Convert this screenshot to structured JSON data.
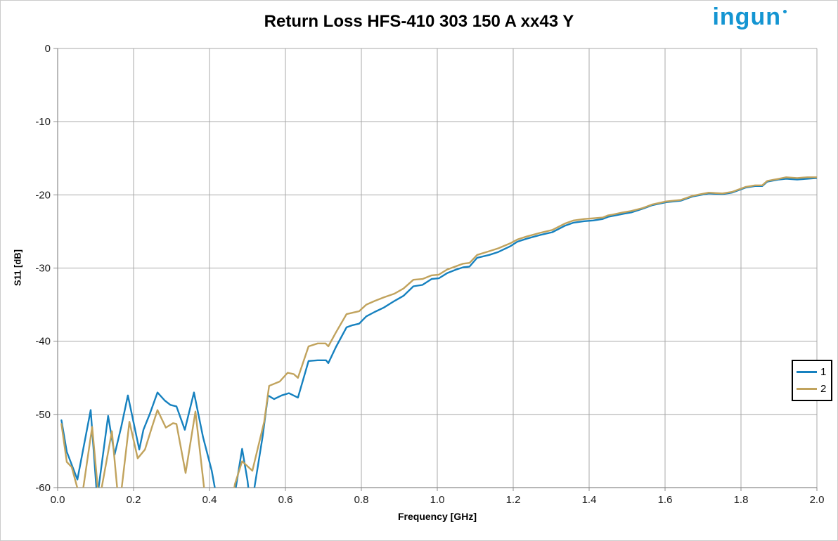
{
  "logo": {
    "text": "ingun"
  },
  "chart_data": {
    "type": "line",
    "title": "Return Loss HFS-410 303 150 A xx43 Y",
    "xlabel": "Frequency [GHz]",
    "ylabel": "S11 [dB]",
    "xlim": [
      0.0,
      2.0
    ],
    "ylim": [
      -60,
      0
    ],
    "grid": true,
    "legend_position": "inside-right",
    "x_ticks": {
      "values": [
        0.0,
        0.2,
        0.4,
        0.6,
        0.8,
        1.0,
        1.2,
        1.4,
        1.6,
        1.8,
        2.0
      ],
      "labels": [
        "0.0",
        "0.2",
        "0.4",
        "0.6",
        "0.8",
        "1.0",
        "1.2",
        "1.4",
        "1.6",
        "1.8",
        "2.0"
      ]
    },
    "y_ticks": {
      "values": [
        0,
        -10,
        -20,
        -30,
        -40,
        -50,
        -60
      ],
      "labels": [
        "0",
        "-10",
        "-20",
        "-30",
        "-40",
        "-50",
        "-60"
      ]
    },
    "colors": {
      "grid": "#a8a8a8",
      "axis": "#8c8c8c",
      "tick_text": "#1a1a1a",
      "series1": "#1681bf",
      "series2": "#c1a35d",
      "logo": "#1495d2"
    },
    "series": [
      {
        "name": "1",
        "color": "#1681bf",
        "points": [
          [
            0.01,
            -50.8
          ],
          [
            0.024,
            -55.1
          ],
          [
            0.052,
            -58.9
          ],
          [
            0.087,
            -49.4
          ],
          [
            0.104,
            -61.5
          ],
          [
            0.133,
            -50.2
          ],
          [
            0.15,
            -55.5
          ],
          [
            0.168,
            -51.6
          ],
          [
            0.185,
            -47.4
          ],
          [
            0.215,
            -54.8
          ],
          [
            0.226,
            -52.1
          ],
          [
            0.243,
            -49.9
          ],
          [
            0.263,
            -47.0
          ],
          [
            0.282,
            -48.1
          ],
          [
            0.297,
            -48.7
          ],
          [
            0.313,
            -48.9
          ],
          [
            0.335,
            -52.1
          ],
          [
            0.359,
            -47.0
          ],
          [
            0.383,
            -53.1
          ],
          [
            0.406,
            -57.7
          ],
          [
            0.428,
            -64.0
          ],
          [
            0.448,
            -66.0
          ],
          [
            0.47,
            -59.8
          ],
          [
            0.486,
            -54.7
          ],
          [
            0.5,
            -59.0
          ],
          [
            0.509,
            -63.0
          ],
          [
            0.54,
            -53.0
          ],
          [
            0.554,
            -47.4
          ],
          [
            0.57,
            -47.9
          ],
          [
            0.59,
            -47.4
          ],
          [
            0.609,
            -47.1
          ],
          [
            0.633,
            -47.7
          ],
          [
            0.661,
            -42.7
          ],
          [
            0.685,
            -42.6
          ],
          [
            0.707,
            -42.6
          ],
          [
            0.713,
            -43.0
          ],
          [
            0.733,
            -40.8
          ],
          [
            0.761,
            -38.1
          ],
          [
            0.777,
            -37.8
          ],
          [
            0.794,
            -37.6
          ],
          [
            0.813,
            -36.6
          ],
          [
            0.835,
            -36.0
          ],
          [
            0.859,
            -35.4
          ],
          [
            0.887,
            -34.5
          ],
          [
            0.911,
            -33.8
          ],
          [
            0.937,
            -32.5
          ],
          [
            0.961,
            -32.3
          ],
          [
            0.985,
            -31.5
          ],
          [
            1.004,
            -31.4
          ],
          [
            1.026,
            -30.7
          ],
          [
            1.05,
            -30.2
          ],
          [
            1.068,
            -29.9
          ],
          [
            1.085,
            -29.8
          ],
          [
            1.105,
            -28.6
          ],
          [
            1.137,
            -28.2
          ],
          [
            1.161,
            -27.8
          ],
          [
            1.193,
            -27.0
          ],
          [
            1.211,
            -26.4
          ],
          [
            1.235,
            -26.0
          ],
          [
            1.27,
            -25.5
          ],
          [
            1.303,
            -25.1
          ],
          [
            1.337,
            -24.2
          ],
          [
            1.359,
            -23.8
          ],
          [
            1.387,
            -23.6
          ],
          [
            1.411,
            -23.5
          ],
          [
            1.436,
            -23.3
          ],
          [
            1.45,
            -23.0
          ],
          [
            1.461,
            -22.9
          ],
          [
            1.489,
            -22.6
          ],
          [
            1.511,
            -22.4
          ],
          [
            1.541,
            -21.9
          ],
          [
            1.567,
            -21.4
          ],
          [
            1.603,
            -21.0
          ],
          [
            1.641,
            -20.8
          ],
          [
            1.674,
            -20.2
          ],
          [
            1.715,
            -19.8
          ],
          [
            1.751,
            -19.9
          ],
          [
            1.776,
            -19.7
          ],
          [
            1.813,
            -19.0
          ],
          [
            1.837,
            -18.8
          ],
          [
            1.856,
            -18.8
          ],
          [
            1.869,
            -18.2
          ],
          [
            1.9,
            -17.9
          ],
          [
            1.919,
            -17.8
          ],
          [
            1.948,
            -17.9
          ],
          [
            1.975,
            -17.8
          ],
          [
            2.0,
            -17.7
          ]
        ]
      },
      {
        "name": "2",
        "color": "#c1a35d",
        "points": [
          [
            0.01,
            -51.3
          ],
          [
            0.024,
            -56.5
          ],
          [
            0.037,
            -57.2
          ],
          [
            0.062,
            -62.0
          ],
          [
            0.091,
            -51.7
          ],
          [
            0.109,
            -62.0
          ],
          [
            0.143,
            -52.3
          ],
          [
            0.162,
            -63.0
          ],
          [
            0.189,
            -51.0
          ],
          [
            0.211,
            -56.0
          ],
          [
            0.23,
            -54.8
          ],
          [
            0.248,
            -51.8
          ],
          [
            0.263,
            -49.4
          ],
          [
            0.285,
            -51.8
          ],
          [
            0.304,
            -51.2
          ],
          [
            0.313,
            -51.3
          ],
          [
            0.337,
            -58.0
          ],
          [
            0.363,
            -49.6
          ],
          [
            0.39,
            -62.0
          ],
          [
            0.42,
            -67.0
          ],
          [
            0.45,
            -65.0
          ],
          [
            0.467,
            -59.5
          ],
          [
            0.486,
            -56.4
          ],
          [
            0.513,
            -57.7
          ],
          [
            0.544,
            -51.0
          ],
          [
            0.557,
            -46.1
          ],
          [
            0.585,
            -45.5
          ],
          [
            0.606,
            -44.3
          ],
          [
            0.622,
            -44.5
          ],
          [
            0.633,
            -45.0
          ],
          [
            0.661,
            -40.7
          ],
          [
            0.685,
            -40.3
          ],
          [
            0.706,
            -40.3
          ],
          [
            0.713,
            -40.7
          ],
          [
            0.733,
            -38.8
          ],
          [
            0.761,
            -36.3
          ],
          [
            0.794,
            -35.9
          ],
          [
            0.813,
            -35.0
          ],
          [
            0.835,
            -34.5
          ],
          [
            0.859,
            -34.0
          ],
          [
            0.887,
            -33.5
          ],
          [
            0.911,
            -32.8
          ],
          [
            0.937,
            -31.6
          ],
          [
            0.961,
            -31.5
          ],
          [
            0.985,
            -31.0
          ],
          [
            1.004,
            -30.9
          ],
          [
            1.026,
            -30.2
          ],
          [
            1.068,
            -29.4
          ],
          [
            1.085,
            -29.3
          ],
          [
            1.105,
            -28.2
          ],
          [
            1.137,
            -27.7
          ],
          [
            1.161,
            -27.3
          ],
          [
            1.193,
            -26.6
          ],
          [
            1.211,
            -26.1
          ],
          [
            1.235,
            -25.7
          ],
          [
            1.27,
            -25.2
          ],
          [
            1.303,
            -24.8
          ],
          [
            1.337,
            -23.9
          ],
          [
            1.359,
            -23.5
          ],
          [
            1.387,
            -23.3
          ],
          [
            1.411,
            -23.2
          ],
          [
            1.436,
            -23.1
          ],
          [
            1.45,
            -22.8
          ],
          [
            1.461,
            -22.7
          ],
          [
            1.489,
            -22.4
          ],
          [
            1.511,
            -22.2
          ],
          [
            1.541,
            -21.8
          ],
          [
            1.567,
            -21.3
          ],
          [
            1.603,
            -20.9
          ],
          [
            1.641,
            -20.7
          ],
          [
            1.674,
            -20.1
          ],
          [
            1.715,
            -19.7
          ],
          [
            1.751,
            -19.8
          ],
          [
            1.776,
            -19.6
          ],
          [
            1.813,
            -18.9
          ],
          [
            1.837,
            -18.7
          ],
          [
            1.856,
            -18.7
          ],
          [
            1.869,
            -18.1
          ],
          [
            1.9,
            -17.8
          ],
          [
            1.919,
            -17.6
          ],
          [
            1.948,
            -17.7
          ],
          [
            1.975,
            -17.6
          ],
          [
            2.0,
            -17.6
          ]
        ]
      }
    ]
  }
}
